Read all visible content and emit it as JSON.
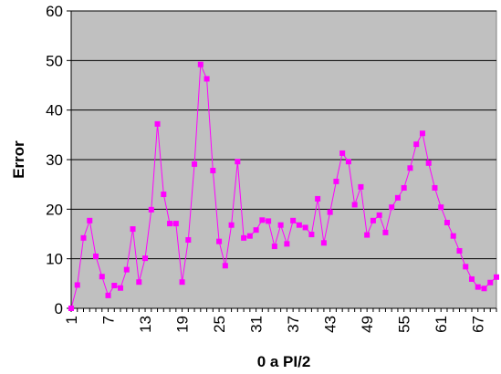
{
  "chart_data": {
    "type": "line",
    "title": "",
    "xlabel": "0 a PI/2",
    "ylabel": "Error",
    "ylim": [
      0,
      60
    ],
    "yticks": [
      0,
      10,
      20,
      30,
      40,
      50,
      60
    ],
    "x": [
      1,
      2,
      3,
      4,
      5,
      6,
      7,
      8,
      9,
      10,
      11,
      12,
      13,
      14,
      15,
      16,
      17,
      18,
      19,
      20,
      21,
      22,
      23,
      24,
      25,
      26,
      27,
      28,
      29,
      30,
      31,
      32,
      33,
      34,
      35,
      36,
      37,
      38,
      39,
      40,
      41,
      42,
      43,
      44,
      45,
      46,
      47,
      48,
      49,
      50,
      51,
      52,
      53,
      54,
      55,
      56,
      57,
      58,
      59,
      60,
      61,
      62,
      63,
      64,
      65,
      66,
      67,
      68,
      69,
      70
    ],
    "xlim": [
      1,
      70
    ],
    "xtick_labels": [
      "1",
      "7",
      "13",
      "19",
      "25",
      "31",
      "37",
      "43",
      "49",
      "55",
      "61",
      "67"
    ],
    "grid": "horizontal",
    "plot_background": "#C0C0C0",
    "series": [
      {
        "color": "#FF00FF",
        "marker": "square",
        "values": [
          0,
          4.7,
          14.2,
          17.7,
          10.5,
          6.4,
          2.6,
          4.6,
          4.1,
          7.8,
          16,
          5.3,
          10.1,
          19.9,
          37.2,
          23,
          17.1,
          17.1,
          5.3,
          13.8,
          29.1,
          49.2,
          46.3,
          27.8,
          13.5,
          8.6,
          16.8,
          29.6,
          14.2,
          14.6,
          15.8,
          17.8,
          17.6,
          12.5,
          16.8,
          13,
          17.7,
          16.8,
          16.3,
          14.9,
          22.1,
          13.2,
          19.4,
          25.6,
          31.3,
          29.6,
          20.9,
          24.5,
          14.8,
          17.7,
          18.8,
          15.3,
          20.4,
          22.3,
          24.3,
          28.3,
          33.1,
          35.3,
          29.3,
          24.3,
          20.4,
          17.3,
          14.6,
          11.6,
          8.4,
          5.9,
          4.3,
          4,
          5.2,
          6.3
        ]
      }
    ]
  }
}
